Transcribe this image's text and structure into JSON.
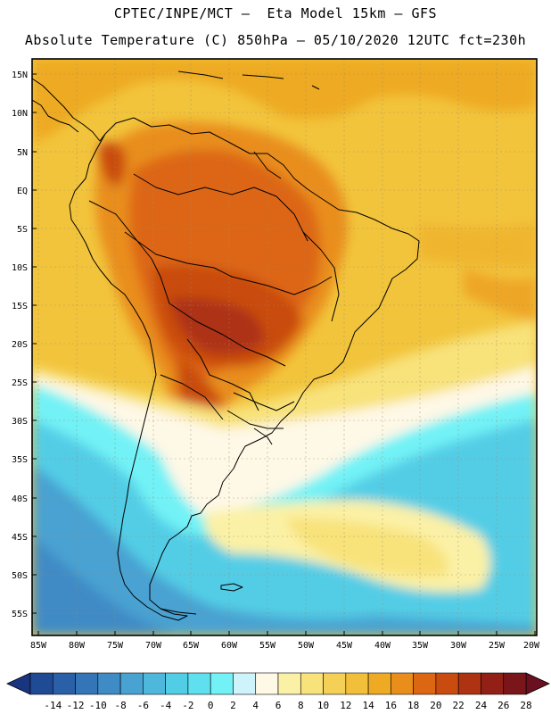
{
  "header": {
    "title_line1": "CPTEC/INPE/MCT –  Eta Model 15km – GFS",
    "title_line2": "Absolute Temperature (C) 850hPa – 05/10/2020 12UTC fct=230h"
  },
  "lat_ticks": [
    "15N",
    "10N",
    "5N",
    "EQ",
    "5S",
    "10S",
    "15S",
    "20S",
    "25S",
    "30S",
    "35S",
    "40S",
    "45S",
    "50S",
    "55S"
  ],
  "lon_ticks": [
    "85W",
    "80W",
    "75W",
    "70W",
    "65W",
    "60W",
    "55W",
    "50W",
    "45W",
    "40W",
    "35W",
    "30W",
    "25W",
    "20W"
  ],
  "colorbar": {
    "labels": [
      "-14",
      "-12",
      "-10",
      "-8",
      "-6",
      "-4",
      "-2",
      "0",
      "2",
      "4",
      "6",
      "8",
      "10",
      "12",
      "14",
      "16",
      "18",
      "20",
      "22",
      "24",
      "26",
      "28"
    ],
    "colors": [
      "#1f4a94",
      "#2a60a8",
      "#3475b8",
      "#3f8bc6",
      "#48a2d2",
      "#4eb8dc",
      "#52cde6",
      "#5ee0ee",
      "#72f2f6",
      "#cff3fb",
      "#fef8e6",
      "#fbf1a6",
      "#f8e27a",
      "#f4d056",
      "#f2bf3a",
      "#eeaa22",
      "#e98e1a",
      "#dd6612",
      "#c94b10",
      "#ad3313",
      "#922016",
      "#7a1519"
    ],
    "low_arrow_color": "#1a3580",
    "high_arrow_color": "#6a1020"
  }
}
